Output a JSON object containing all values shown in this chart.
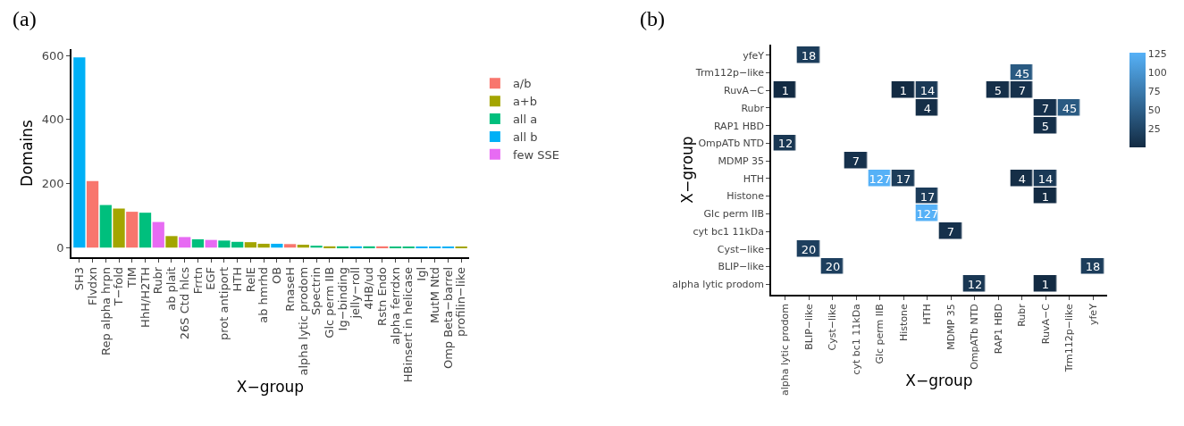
{
  "chart_data": [
    {
      "type": "bar",
      "title": "(a)",
      "xlabel": "X−group",
      "ylabel": "Domains",
      "categories": [
        "SH3",
        "Flvdxn",
        "Rep alpha hrpn",
        "T−fold",
        "TIM",
        "HhH/H2TH",
        "Rubr",
        "ab plait",
        "26S Ctd hlcs",
        "Frrtn",
        "EGF",
        "prot antiport",
        "HTH",
        "RelE",
        "ab hmrhd",
        "OB",
        "RnaseH",
        "alpha lytic prodom",
        "Spectrin",
        "Glc perm IIB",
        "Ig−binding",
        "jelly−roll",
        "4HB/ud",
        "Rstn Endo",
        "alpha ferrdxn",
        "HBinsert in helicase",
        "Igl",
        "MutM Ntd",
        "Omp Beta−barrel",
        "profilin−like"
      ],
      "series": [
        {
          "name": "a/b",
          "color": "#f8766d",
          "values": [
            null,
            208,
            null,
            null,
            112,
            null,
            null,
            null,
            null,
            null,
            null,
            null,
            null,
            null,
            null,
            null,
            11,
            null,
            null,
            null,
            null,
            null,
            null,
            4,
            null,
            null,
            null,
            null,
            null,
            null
          ]
        },
        {
          "name": "a+b",
          "color": "#a3a500",
          "values": [
            null,
            null,
            null,
            122,
            null,
            null,
            null,
            36,
            null,
            null,
            null,
            null,
            null,
            17,
            12,
            null,
            null,
            9,
            null,
            4,
            null,
            null,
            null,
            null,
            null,
            null,
            null,
            null,
            null,
            1
          ]
        },
        {
          "name": "all a",
          "color": "#00bf7d",
          "values": [
            null,
            null,
            133,
            null,
            null,
            109,
            null,
            null,
            null,
            26,
            null,
            22,
            18,
            null,
            null,
            null,
            null,
            null,
            6,
            null,
            4,
            null,
            4,
            null,
            3,
            1,
            null,
            null,
            null,
            null
          ]
        },
        {
          "name": "all b",
          "color": "#00b0f6",
          "values": [
            594,
            null,
            null,
            null,
            null,
            null,
            null,
            null,
            null,
            null,
            null,
            null,
            null,
            null,
            null,
            12,
            null,
            null,
            null,
            null,
            null,
            4,
            null,
            null,
            null,
            null,
            1,
            1,
            1,
            null
          ]
        },
        {
          "name": "few SSE",
          "color": "#e76bf3",
          "values": [
            null,
            null,
            null,
            null,
            null,
            null,
            80,
            null,
            33,
            null,
            24,
            null,
            null,
            null,
            null,
            null,
            null,
            null,
            null,
            null,
            null,
            null,
            null,
            null,
            null,
            null,
            null,
            null,
            null,
            null
          ]
        }
      ],
      "ylim": [
        -30,
        620
      ],
      "yticks": [
        0,
        200,
        400,
        600
      ],
      "grid": false,
      "legend": "right"
    },
    {
      "type": "heatmap",
      "title": "(b)",
      "xlabel": "X−group",
      "ylabel": "X−group",
      "categories": [
        "alpha lytic prodom",
        "BLIP−like",
        "Cyst−like",
        "cyt bc1 11kDa",
        "Glc perm IIB",
        "Histone",
        "HTH",
        "MDMP 35",
        "OmpATb NTD",
        "RAP1 HBD",
        "Rubr",
        "RuvA−C",
        "Trm112p−like",
        "yfeY"
      ],
      "y_categories": [
        "yfeY",
        "Trm112p−like",
        "RuvA−C",
        "Rubr",
        "RAP1 HBD",
        "OmpATb NTD",
        "MDMP 35",
        "HTH",
        "Histone",
        "Glc perm IIB",
        "cyt bc1 11kDa",
        "Cyst−like",
        "BLIP−like",
        "alpha lytic prodom"
      ],
      "cells": [
        [
          null,
          18,
          null,
          null,
          null,
          null,
          null,
          null,
          null,
          null,
          null,
          null,
          null,
          null
        ],
        [
          null,
          null,
          null,
          null,
          null,
          null,
          null,
          null,
          null,
          null,
          45,
          null,
          null,
          null
        ],
        [
          1,
          null,
          null,
          null,
          null,
          1,
          14,
          null,
          null,
          5,
          7,
          null,
          null,
          null
        ],
        [
          null,
          null,
          null,
          null,
          null,
          null,
          4,
          null,
          null,
          null,
          null,
          7,
          45,
          null
        ],
        [
          null,
          null,
          null,
          null,
          null,
          null,
          null,
          null,
          null,
          null,
          null,
          5,
          null,
          null
        ],
        [
          12,
          null,
          null,
          null,
          null,
          null,
          null,
          null,
          null,
          null,
          null,
          null,
          null,
          null
        ],
        [
          null,
          null,
          null,
          7,
          null,
          null,
          null,
          null,
          null,
          null,
          null,
          null,
          null,
          null
        ],
        [
          null,
          null,
          null,
          null,
          127,
          17,
          null,
          null,
          null,
          null,
          4,
          14,
          null,
          null
        ],
        [
          null,
          null,
          null,
          null,
          null,
          null,
          17,
          null,
          null,
          null,
          null,
          1,
          null,
          null
        ],
        [
          null,
          null,
          null,
          null,
          null,
          null,
          127,
          null,
          null,
          null,
          null,
          null,
          null,
          null
        ],
        [
          null,
          null,
          null,
          null,
          null,
          null,
          null,
          7,
          null,
          null,
          null,
          null,
          null,
          null
        ],
        [
          null,
          20,
          null,
          null,
          null,
          null,
          null,
          null,
          null,
          null,
          null,
          null,
          null,
          null
        ],
        [
          null,
          null,
          20,
          null,
          null,
          null,
          null,
          null,
          null,
          null,
          null,
          null,
          null,
          18
        ],
        [
          null,
          null,
          null,
          null,
          null,
          null,
          null,
          null,
          12,
          null,
          null,
          1,
          null,
          null
        ]
      ],
      "data_labels": true,
      "clim": [
        1,
        127
      ],
      "cticks": [
        25,
        50,
        75,
        100,
        125
      ],
      "grid": false
    }
  ]
}
